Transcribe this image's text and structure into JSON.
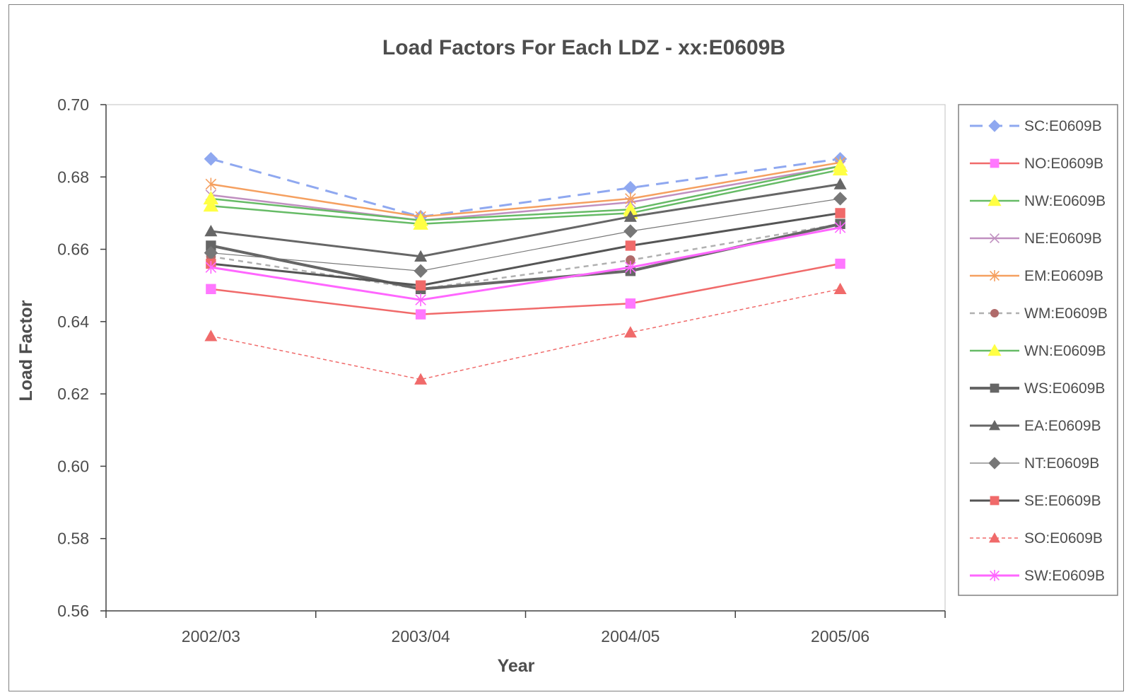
{
  "chart_data": {
    "type": "line",
    "title": "Load Factors For Each LDZ - xx:E0609B",
    "xlabel": "Year",
    "ylabel": "Load Factor",
    "categories": [
      "2002/03",
      "2003/04",
      "2004/05",
      "2005/06"
    ],
    "ylim": [
      0.56,
      0.7
    ],
    "yticks": [
      "0.70",
      "0.68",
      "0.66",
      "0.64",
      "0.62",
      "0.60",
      "0.58",
      "0.56"
    ],
    "legend_position": "right",
    "grid": false,
    "series": [
      {
        "name": "SC:E0609B",
        "values": [
          0.685,
          0.669,
          0.677,
          0.685
        ],
        "color": "#8fa8f0",
        "marker": "diamond",
        "dash": "dashed",
        "width": 3
      },
      {
        "name": "NO:E0609B",
        "values": [
          0.649,
          0.642,
          0.645,
          0.656
        ],
        "color": "#f06a6a",
        "marker": "square-magenta",
        "dash": "solid",
        "width": 2.5
      },
      {
        "name": "NW:E0609B",
        "values": [
          0.672,
          0.667,
          0.67,
          0.682
        ],
        "color": "#66bb66",
        "marker": "triangle-yellow",
        "dash": "solid",
        "width": 2.5
      },
      {
        "name": "NE:E0609B",
        "values": [
          0.675,
          0.668,
          0.673,
          0.683
        ],
        "color": "#c090c0",
        "marker": "x",
        "dash": "solid",
        "width": 2.5
      },
      {
        "name": "EM:E0609B",
        "values": [
          0.678,
          0.669,
          0.674,
          0.684
        ],
        "color": "#f5a060",
        "marker": "asterisk",
        "dash": "solid",
        "width": 2.5
      },
      {
        "name": "WM:E0609B",
        "values": [
          0.658,
          0.649,
          0.657,
          0.667
        ],
        "color": "#b0b0b0",
        "marker": "circle",
        "dash": "dashed-short",
        "width": 2.5
      },
      {
        "name": "WN:E0609B",
        "values": [
          0.674,
          0.668,
          0.671,
          0.683
        ],
        "color": "#66bb66",
        "marker": "triangle-yellow",
        "dash": "solid",
        "width": 2.5
      },
      {
        "name": "WS:E0609B",
        "values": [
          0.661,
          0.649,
          0.654,
          0.667
        ],
        "color": "#666666",
        "marker": "square",
        "dash": "solid",
        "width": 4
      },
      {
        "name": "EA:E0609B",
        "values": [
          0.665,
          0.658,
          0.669,
          0.678
        ],
        "color": "#666666",
        "marker": "triangle",
        "dash": "solid",
        "width": 3
      },
      {
        "name": "NT:E0609B",
        "values": [
          0.659,
          0.654,
          0.665,
          0.674
        ],
        "color": "#777777",
        "marker": "diamond",
        "dash": "solid",
        "width": 1.2
      },
      {
        "name": "SE:E0609B",
        "values": [
          0.656,
          0.65,
          0.661,
          0.67
        ],
        "color": "#555555",
        "marker": "square-red",
        "dash": "solid",
        "width": 3
      },
      {
        "name": "SO:E0609B",
        "values": [
          0.636,
          0.624,
          0.637,
          0.649
        ],
        "color": "#f06a6a",
        "marker": "triangle-red",
        "dash": "dotted",
        "width": 1.5
      },
      {
        "name": "SW:E0609B",
        "values": [
          0.655,
          0.646,
          0.655,
          0.666
        ],
        "color": "#ff66ff",
        "marker": "asterisk",
        "dash": "solid",
        "width": 3
      }
    ]
  }
}
